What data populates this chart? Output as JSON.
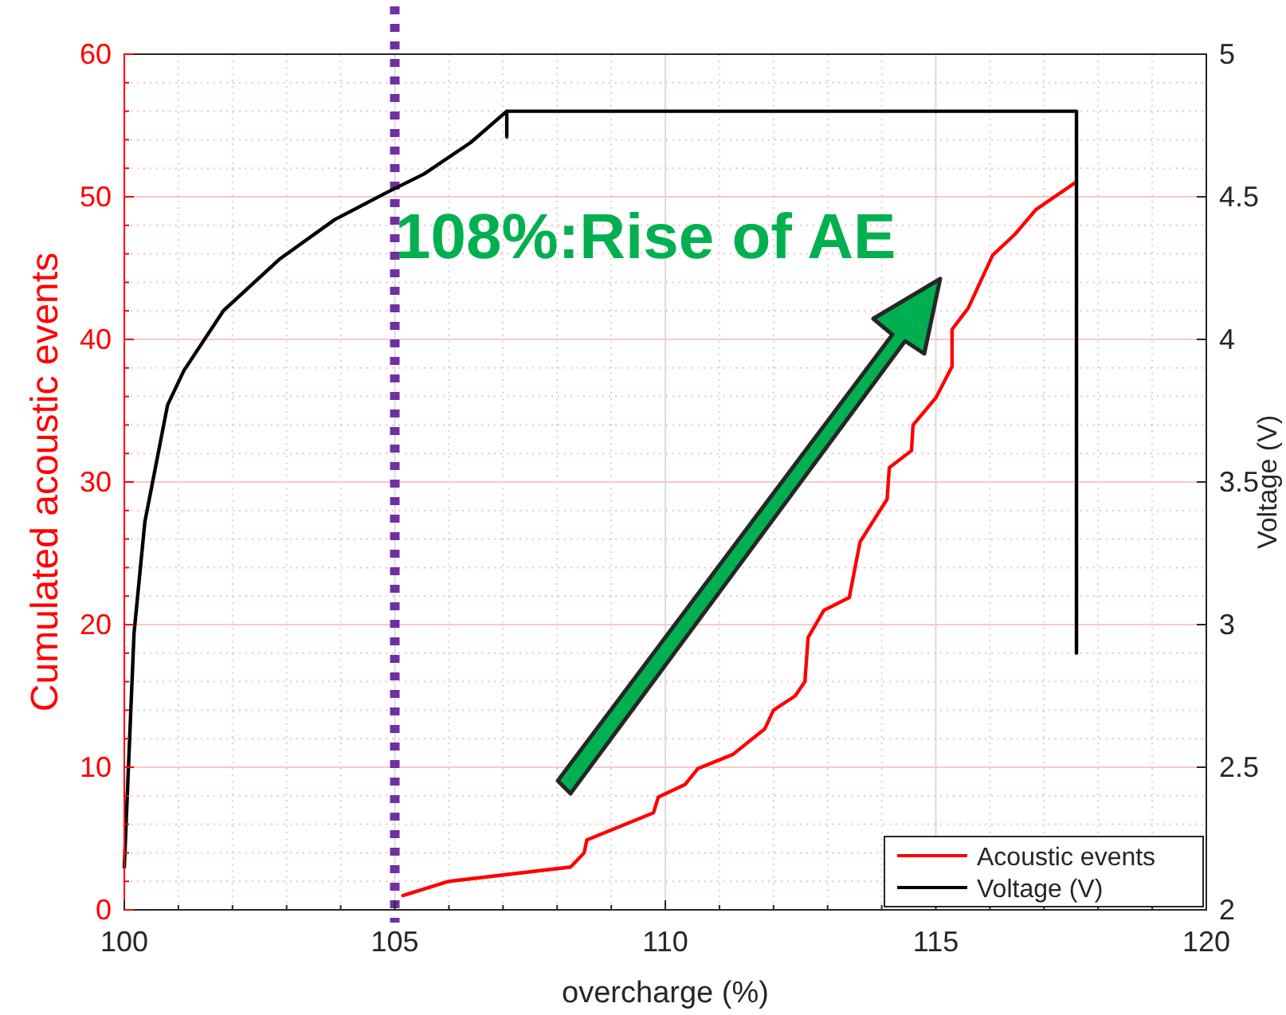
{
  "chart_data": {
    "type": "line",
    "xlabel": "overcharge (%)",
    "ylabel": "Cumulated acoustic events",
    "y2label": "Voltage (V)",
    "xlim": [
      100,
      120
    ],
    "xticks": [
      100,
      {
        "value": 101,
        "label": null
      },
      {
        "value": 102,
        "label": null
      },
      {
        "value": 103,
        "label": null
      },
      {
        "value": 104,
        "label": null
      },
      105,
      {
        "value": 106,
        "label": null
      },
      {
        "value": 107,
        "label": null
      },
      {
        "value": 108,
        "label": null
      },
      {
        "value": 109,
        "label": null
      },
      110,
      {
        "value": 111,
        "label": null
      },
      {
        "value": 112,
        "label": null
      },
      {
        "value": 113,
        "label": null
      },
      {
        "value": 114,
        "label": null
      },
      115,
      {
        "value": 116,
        "label": null
      },
      {
        "value": 117,
        "label": null
      },
      {
        "value": 118,
        "label": null
      },
      {
        "value": 119,
        "label": null
      },
      120
    ],
    "ylim": [
      0,
      60
    ],
    "yticks": [
      0,
      {
        "value": 2,
        "label": null
      },
      {
        "value": 4,
        "label": null
      },
      {
        "value": 6,
        "label": null
      },
      {
        "value": 8,
        "label": null
      },
      10,
      {
        "value": 12,
        "label": null
      },
      {
        "value": 14,
        "label": null
      },
      {
        "value": 16,
        "label": null
      },
      {
        "value": 18,
        "label": null
      },
      20,
      {
        "value": 22,
        "label": null
      },
      {
        "value": 24,
        "label": null
      },
      {
        "value": 26,
        "label": null
      },
      {
        "value": 28,
        "label": null
      },
      30,
      {
        "value": 32,
        "label": null
      },
      {
        "value": 34,
        "label": null
      },
      {
        "value": 36,
        "label": null
      },
      {
        "value": 38,
        "label": null
      },
      40,
      {
        "value": 42,
        "label": null
      },
      {
        "value": 44,
        "label": null
      },
      {
        "value": 46,
        "label": null
      },
      {
        "value": 48,
        "label": null
      },
      50,
      {
        "value": 52,
        "label": null
      },
      {
        "value": 54,
        "label": null
      },
      {
        "value": 56,
        "label": null
      },
      {
        "value": 58,
        "label": null
      },
      60
    ],
    "y2lim": [
      2,
      5
    ],
    "y2ticks": [
      2,
      2.5,
      3,
      3.5,
      4,
      4.5,
      5
    ],
    "grid": true,
    "legend": "bottom right",
    "ref_lines": [
      {
        "axis": "x",
        "value": 105,
        "color": "#7030a0",
        "line_style": "dotted"
      }
    ],
    "annotations": [
      "108%:Rise of AE"
    ],
    "series": [
      {
        "name": "Acoustic events",
        "color": "#ff0000",
        "axis": "y",
        "x": [
          105.15,
          106.0,
          108.25,
          108.5,
          108.55,
          109.78,
          109.87,
          110.37,
          110.6,
          111.25,
          111.84,
          112.0,
          112.4,
          112.58,
          112.64,
          112.93,
          113.4,
          113.6,
          114.1,
          114.14,
          114.55,
          114.58,
          115.0,
          115.3,
          115.3,
          115.6,
          116.05,
          116.47,
          116.85,
          117.58
        ],
        "values": [
          1,
          2,
          3,
          4,
          4.9,
          6.8,
          7.9,
          8.8,
          9.9,
          10.9,
          12.7,
          14,
          15,
          16,
          19.1,
          21,
          21.9,
          25.8,
          28.8,
          31,
          32.2,
          34,
          35.9,
          38.1,
          40.7,
          42.2,
          45.9,
          47.4,
          49.1,
          51
        ]
      },
      {
        "name": "Voltage (V)",
        "color": "#000000",
        "axis": "y2",
        "x": [
          100,
          100.18,
          100.38,
          100.8,
          101.1,
          101.83,
          102.86,
          103.89,
          104.8,
          105.54,
          106.4,
          107.07,
          107.07,
          107.07,
          117.6,
          117.6
        ],
        "values": [
          2.15,
          2.97,
          3.36,
          3.77,
          3.89,
          4.1,
          4.28,
          4.42,
          4.51,
          4.58,
          4.69,
          4.8,
          4.71,
          4.8,
          4.8,
          2.9
        ]
      }
    ]
  }
}
